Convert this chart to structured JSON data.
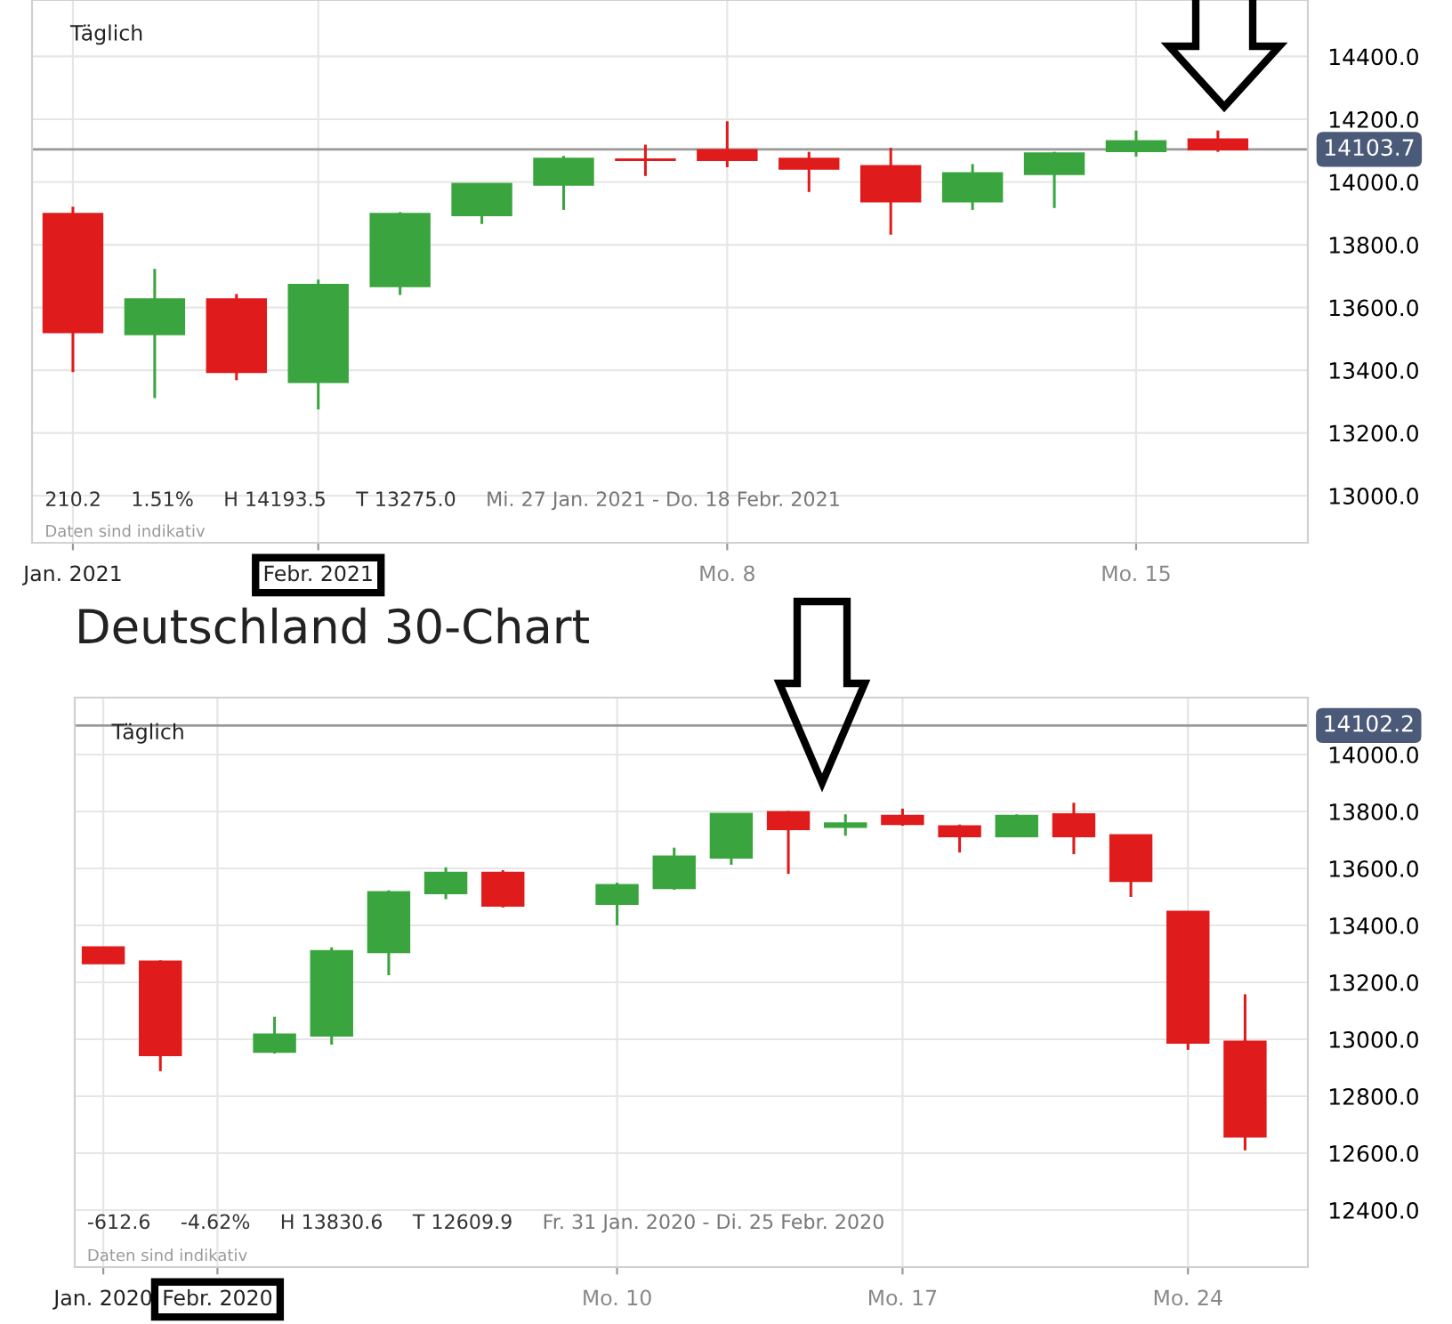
{
  "chart_data": [
    {
      "type": "candlestick",
      "categories": [
        "Jan. 2021",
        null,
        null,
        "Febr. 2021",
        null,
        null,
        null,
        null,
        "Mo. 8",
        null,
        null,
        null,
        null,
        "Mo. 15",
        null
      ],
      "ohlc": [
        [
          13898,
          13921,
          13394,
          13521
        ],
        [
          13515,
          13723,
          13311,
          13626
        ],
        [
          13626,
          13643,
          13368,
          13394
        ],
        [
          13362,
          13689,
          13275.0,
          13672
        ],
        [
          13668,
          13904,
          13640,
          13898
        ],
        [
          13894,
          13994,
          13866,
          13994
        ],
        [
          13991,
          14083,
          13911,
          14074
        ],
        [
          14072,
          14119,
          14019,
          14070
        ],
        [
          14102,
          14193.5,
          14047,
          14070
        ],
        [
          14074,
          14096,
          13968,
          14042
        ],
        [
          14051,
          14109,
          13832,
          13938
        ],
        [
          13938,
          14057,
          13911,
          14028
        ],
        [
          14025,
          14096,
          13917,
          14091
        ],
        [
          14098,
          14164,
          14081,
          14130
        ],
        [
          14136,
          14164,
          14096,
          14103.7
        ]
      ],
      "colors": [
        "#e01b1b",
        "#3aa53e",
        "#e01b1b",
        "#3aa53e",
        "#3aa53e",
        "#3aa53e",
        "#3aa53e",
        "#e01b1b",
        "#e01b1b",
        "#e01b1b",
        "#e01b1b",
        "#3aa53e",
        "#3aa53e",
        "#3aa53e",
        "#e01b1b"
      ],
      "ylim": [
        12850,
        14580
      ],
      "yticks": [
        {
          "value": 13000,
          "label": "13000.0"
        },
        {
          "value": 13200,
          "label": "13200.0"
        },
        {
          "value": 13400,
          "label": "13400.0"
        },
        {
          "value": 13600,
          "label": "13600.0"
        },
        {
          "value": 13800,
          "label": "13800.0"
        },
        {
          "value": 14000,
          "label": "14000.0"
        },
        {
          "value": 14200,
          "label": "14200.0"
        },
        {
          "value": 14400,
          "label": "14400.0"
        }
      ],
      "ref_lines": [
        {
          "axis": "y",
          "value": 14103.7,
          "label": "14103.7",
          "color": "#9a9a9a"
        }
      ],
      "grid": true,
      "annotations": [
        "Täglich",
        "210.2",
        "1.51%",
        "H 14193.5",
        "T 13275.0",
        "Mi. 27 Jan. 2021 - Do. 18 Febr. 2021",
        "Daten sind indikativ"
      ]
    },
    {
      "type": "candlestick",
      "title": "Deutschland 30-Chart",
      "categories": [
        "Jan. 2020",
        null,
        "Febr. 2020",
        null,
        null,
        null,
        null,
        null,
        null,
        "Mo. 10",
        null,
        null,
        null,
        null,
        "Mo. 17",
        null,
        null,
        null,
        null,
        "Mo. 24",
        null
      ],
      "ohlc": [
        [
          13323,
          13323,
          13267,
          13267
        ],
        [
          13273,
          13277,
          12888,
          12944
        ],
        null,
        [
          12956,
          13079,
          12950,
          13017
        ],
        [
          13013,
          13323,
          12981,
          13310
        ],
        [
          13306,
          13523,
          13225,
          13517
        ],
        [
          13513,
          13604,
          13492,
          13585
        ],
        [
          13585,
          13594,
          13463,
          13469
        ],
        null,
        [
          13475,
          13550,
          13400,
          13542
        ],
        [
          13531,
          13673,
          13525,
          13642
        ],
        [
          13638,
          13792,
          13613,
          13792
        ],
        [
          13798,
          13802,
          13581,
          13738
        ],
        [
          13746,
          13790,
          13715,
          13758
        ],
        [
          13785,
          13810,
          13750,
          13756
        ],
        [
          13748,
          13754,
          13656,
          13713
        ],
        [
          13713,
          13790,
          13713,
          13785
        ],
        [
          13790,
          13830.6,
          13650,
          13713
        ],
        [
          13717,
          13717,
          13500,
          13556
        ],
        [
          13448,
          13448,
          12963,
          12988
        ],
        [
          12992,
          13158,
          12609.9,
          12658
        ]
      ],
      "colors": [
        "#e01b1b",
        "#e01b1b",
        null,
        "#3aa53e",
        "#3aa53e",
        "#3aa53e",
        "#3aa53e",
        "#e01b1b",
        null,
        "#3aa53e",
        "#3aa53e",
        "#3aa53e",
        "#e01b1b",
        "#3aa53e",
        "#e01b1b",
        "#e01b1b",
        "#3aa53e",
        "#e01b1b",
        "#e01b1b",
        "#e01b1b",
        "#e01b1b"
      ],
      "ylim": [
        12200,
        14200
      ],
      "yticks": [
        {
          "value": 12400,
          "label": "12400.0"
        },
        {
          "value": 12600,
          "label": "12600.0"
        },
        {
          "value": 12800,
          "label": "12800.0"
        },
        {
          "value": 13000,
          "label": "13000.0"
        },
        {
          "value": 13200,
          "label": "13200.0"
        },
        {
          "value": 13400,
          "label": "13400.0"
        },
        {
          "value": 13600,
          "label": "13600.0"
        },
        {
          "value": 13800,
          "label": "13800.0"
        },
        {
          "value": 14000,
          "label": "14000.0"
        }
      ],
      "ref_lines": [
        {
          "axis": "y",
          "value": 14102.2,
          "label": "14102.2",
          "color": "#9a9a9a"
        }
      ],
      "grid": true,
      "annotations": [
        "Täglich",
        "-612.6",
        "-4.62%",
        "H 13830.6",
        "T 12609.9",
        "Fr. 31 Jan. 2020 - Di. 25 Febr. 2020",
        "Daten sind indikativ"
      ]
    }
  ]
}
